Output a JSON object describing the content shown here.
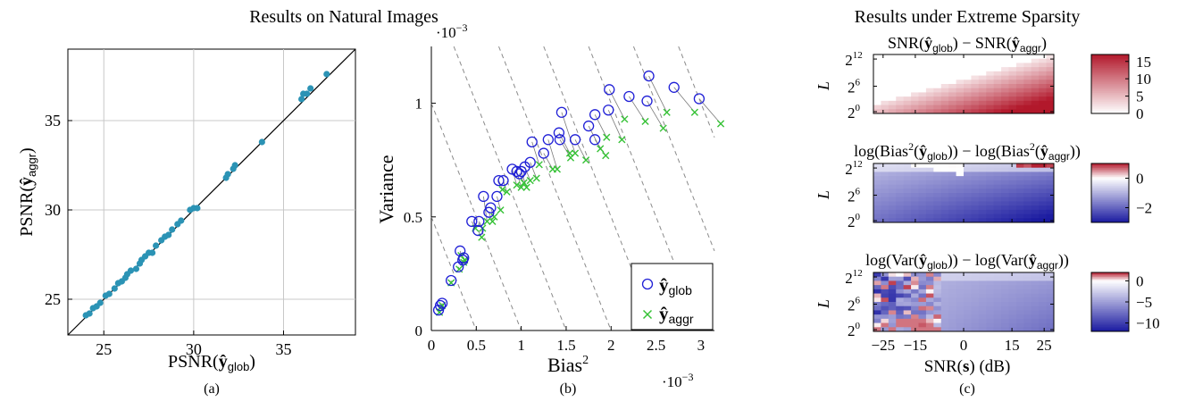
{
  "colors": {
    "scatter_points": "#2b93b5",
    "glob_marker": "#1f1fd6",
    "aggr_marker": "#36c236",
    "grid": "#c8c8c8",
    "dashed_guides": "#8a8a8a",
    "heat_max_red": "#b2182b",
    "heat_min_blue": "#1a1aa0"
  },
  "chart_data": [
    {
      "type": "scatter",
      "panel_label": "(a)",
      "group_title": "Results on Natural Images",
      "xlabel_base": "PSNR(",
      "xlabel_y": "ŷ",
      "xlabel_sub": "glob",
      "xlabel_end": ")",
      "ylabel_base": "PSNR(",
      "ylabel_y": "ŷ",
      "ylabel_sub": "aggr",
      "ylabel_end": ")",
      "xlim": [
        23,
        39
      ],
      "ylim": [
        23,
        39
      ],
      "xticks": [
        25,
        30,
        35
      ],
      "yticks": [
        25,
        30,
        35
      ],
      "grid": true,
      "diagonal": true,
      "points": [
        [
          24.0,
          24.1
        ],
        [
          24.2,
          24.2
        ],
        [
          24.4,
          24.5
        ],
        [
          24.6,
          24.6
        ],
        [
          24.8,
          24.8
        ],
        [
          25.1,
          25.2
        ],
        [
          25.3,
          25.3
        ],
        [
          25.6,
          25.6
        ],
        [
          25.8,
          25.9
        ],
        [
          26.0,
          26.0
        ],
        [
          26.2,
          26.2
        ],
        [
          26.3,
          26.4
        ],
        [
          26.5,
          26.6
        ],
        [
          26.8,
          26.7
        ],
        [
          27.0,
          27.0
        ],
        [
          27.1,
          27.2
        ],
        [
          27.3,
          27.4
        ],
        [
          27.5,
          27.6
        ],
        [
          27.7,
          27.6
        ],
        [
          27.9,
          28.0
        ],
        [
          28.2,
          28.3
        ],
        [
          28.4,
          28.5
        ],
        [
          28.6,
          28.6
        ],
        [
          28.8,
          28.9
        ],
        [
          29.1,
          29.2
        ],
        [
          29.3,
          29.4
        ],
        [
          29.8,
          30.0
        ],
        [
          30.0,
          30.1
        ],
        [
          30.2,
          30.1
        ],
        [
          31.8,
          31.8
        ],
        [
          31.9,
          32.0
        ],
        [
          32.2,
          32.3
        ],
        [
          32.3,
          32.5
        ],
        [
          33.8,
          33.8
        ],
        [
          36.0,
          36.2
        ],
        [
          36.1,
          36.5
        ],
        [
          36.3,
          36.5
        ],
        [
          36.5,
          36.8
        ],
        [
          37.4,
          37.6
        ]
      ]
    },
    {
      "type": "scatter",
      "panel_label": "(b)",
      "xlabel": "Bias",
      "xlabel_sup": "2",
      "ylabel": "Variance",
      "x_scale_note": "·10",
      "x_scale_exp": "−3",
      "y_scale_note": "·10",
      "y_scale_exp": "−3",
      "xlim": [
        0,
        3.15
      ],
      "ylim": [
        0,
        1.25
      ],
      "xticks": [
        0,
        0.5,
        1,
        1.5,
        2,
        2.5,
        3
      ],
      "xtick_labels": [
        "0",
        "0.5",
        "1",
        "1.5",
        "2",
        "2.5",
        "3"
      ],
      "yticks": [
        0,
        0.5,
        1
      ],
      "ytick_labels": [
        "0",
        "0.5",
        "1"
      ],
      "legend_position": "bottom-right",
      "dashed_iso_lines": [
        0.5,
        1.0,
        1.5,
        2.0,
        2.5,
        3.0,
        3.5,
        4.0,
        4.5
      ],
      "series": [
        {
          "name": "glob",
          "label_y": "ŷ",
          "marker": "circle",
          "points": [
            [
              0.08,
              0.09
            ],
            [
              0.1,
              0.11
            ],
            [
              0.12,
              0.12
            ],
            [
              0.22,
              0.22
            ],
            [
              0.3,
              0.28
            ],
            [
              0.32,
              0.35
            ],
            [
              0.35,
              0.31
            ],
            [
              0.36,
              0.32
            ],
            [
              0.45,
              0.48
            ],
            [
              0.52,
              0.44
            ],
            [
              0.53,
              0.48
            ],
            [
              0.58,
              0.59
            ],
            [
              0.64,
              0.52
            ],
            [
              0.66,
              0.54
            ],
            [
              0.73,
              0.59
            ],
            [
              0.75,
              0.66
            ],
            [
              0.8,
              0.66
            ],
            [
              0.9,
              0.71
            ],
            [
              0.95,
              0.7
            ],
            [
              0.98,
              0.69
            ],
            [
              1.0,
              0.7
            ],
            [
              1.04,
              0.72
            ],
            [
              1.1,
              0.74
            ],
            [
              1.12,
              0.83
            ],
            [
              1.25,
              0.78
            ],
            [
              1.3,
              0.84
            ],
            [
              1.42,
              0.87
            ],
            [
              1.43,
              0.84
            ],
            [
              1.45,
              0.96
            ],
            [
              1.6,
              0.84
            ],
            [
              1.75,
              0.9
            ],
            [
              1.82,
              0.84
            ],
            [
              1.82,
              0.95
            ],
            [
              1.97,
              0.97
            ],
            [
              1.98,
              1.06
            ],
            [
              2.2,
              1.03
            ],
            [
              2.4,
              1.01
            ],
            [
              2.42,
              1.12
            ],
            [
              2.7,
              1.07
            ],
            [
              2.98,
              1.02
            ]
          ]
        },
        {
          "name": "aggr",
          "label_y": "ŷ",
          "marker": "x",
          "points": [
            [
              0.09,
              0.08
            ],
            [
              0.1,
              0.1
            ],
            [
              0.12,
              0.11
            ],
            [
              0.22,
              0.21
            ],
            [
              0.31,
              0.27
            ],
            [
              0.33,
              0.33
            ],
            [
              0.36,
              0.3
            ],
            [
              0.37,
              0.31
            ],
            [
              0.49,
              0.45
            ],
            [
              0.56,
              0.41
            ],
            [
              0.57,
              0.45
            ],
            [
              0.62,
              0.48
            ],
            [
              0.68,
              0.48
            ],
            [
              0.7,
              0.5
            ],
            [
              0.77,
              0.53
            ],
            [
              0.79,
              0.62
            ],
            [
              0.84,
              0.61
            ],
            [
              0.95,
              0.64
            ],
            [
              1.0,
              0.63
            ],
            [
              1.03,
              0.65
            ],
            [
              1.06,
              0.63
            ],
            [
              1.1,
              0.66
            ],
            [
              1.17,
              0.67
            ],
            [
              1.2,
              0.73
            ],
            [
              1.35,
              0.71
            ],
            [
              1.4,
              0.71
            ],
            [
              1.54,
              0.78
            ],
            [
              1.55,
              0.76
            ],
            [
              1.6,
              0.78
            ],
            [
              1.72,
              0.75
            ],
            [
              1.88,
              0.8
            ],
            [
              1.94,
              0.77
            ],
            [
              1.95,
              0.85
            ],
            [
              2.12,
              0.84
            ],
            [
              2.15,
              0.93
            ],
            [
              2.38,
              0.92
            ],
            [
              2.58,
              0.89
            ],
            [
              2.62,
              0.96
            ],
            [
              2.93,
              0.96
            ],
            [
              3.22,
              0.91
            ]
          ]
        }
      ]
    },
    {
      "type": "heatmap",
      "panel_label": "(c)",
      "group_title": "Results under Extreme Sparsity",
      "xlabel": "SNR(",
      "xlabel_bold": "s",
      "xlabel_end": ") (dB)",
      "xtick_labels": [
        "−25",
        "−15",
        "0",
        "15",
        "25"
      ],
      "xtick_values": [
        -25,
        -15,
        0,
        15,
        25
      ],
      "xlim": [
        -28,
        28
      ],
      "ylabel": "L",
      "ytick_exponents": [
        "12",
        "6",
        "0"
      ],
      "rows": 14,
      "cols": 24,
      "panels": [
        {
          "title_pre": "SNR(",
          "title_y": "ŷ",
          "title_sub1": "glob",
          "title_mid": ") − SNR(",
          "title_sub2": "aggr",
          "title_end": ")",
          "colorbar_ticks": [
            "15",
            "10",
            "5",
            "0"
          ],
          "colorbar_values": [
            15,
            10,
            5,
            0
          ],
          "range": [
            0,
            17
          ],
          "pattern": "diagonal_red"
        },
        {
          "title_pre": "log(Bias",
          "title_sup": "2",
          "title_y": "ŷ",
          "title_sub1": "glob",
          "title_mid": ")) − log(Bias",
          "title_sub2": "aggr",
          "title_end": "))",
          "colorbar_ticks": [
            "0",
            "−2"
          ],
          "colorbar_values": [
            0,
            -2
          ],
          "range": [
            -3,
            1
          ],
          "pattern": "bias_diff"
        },
        {
          "title_pre": "log(Var(",
          "title_y": "ŷ",
          "title_sub1": "glob",
          "title_mid": ")) − log(Var(",
          "title_sub2": "aggr",
          "title_end": "))",
          "colorbar_ticks": [
            "0",
            "−5",
            "−10"
          ],
          "colorbar_values": [
            0,
            -5,
            -10
          ],
          "range": [
            -12,
            2
          ],
          "pattern": "var_diff"
        }
      ]
    }
  ]
}
